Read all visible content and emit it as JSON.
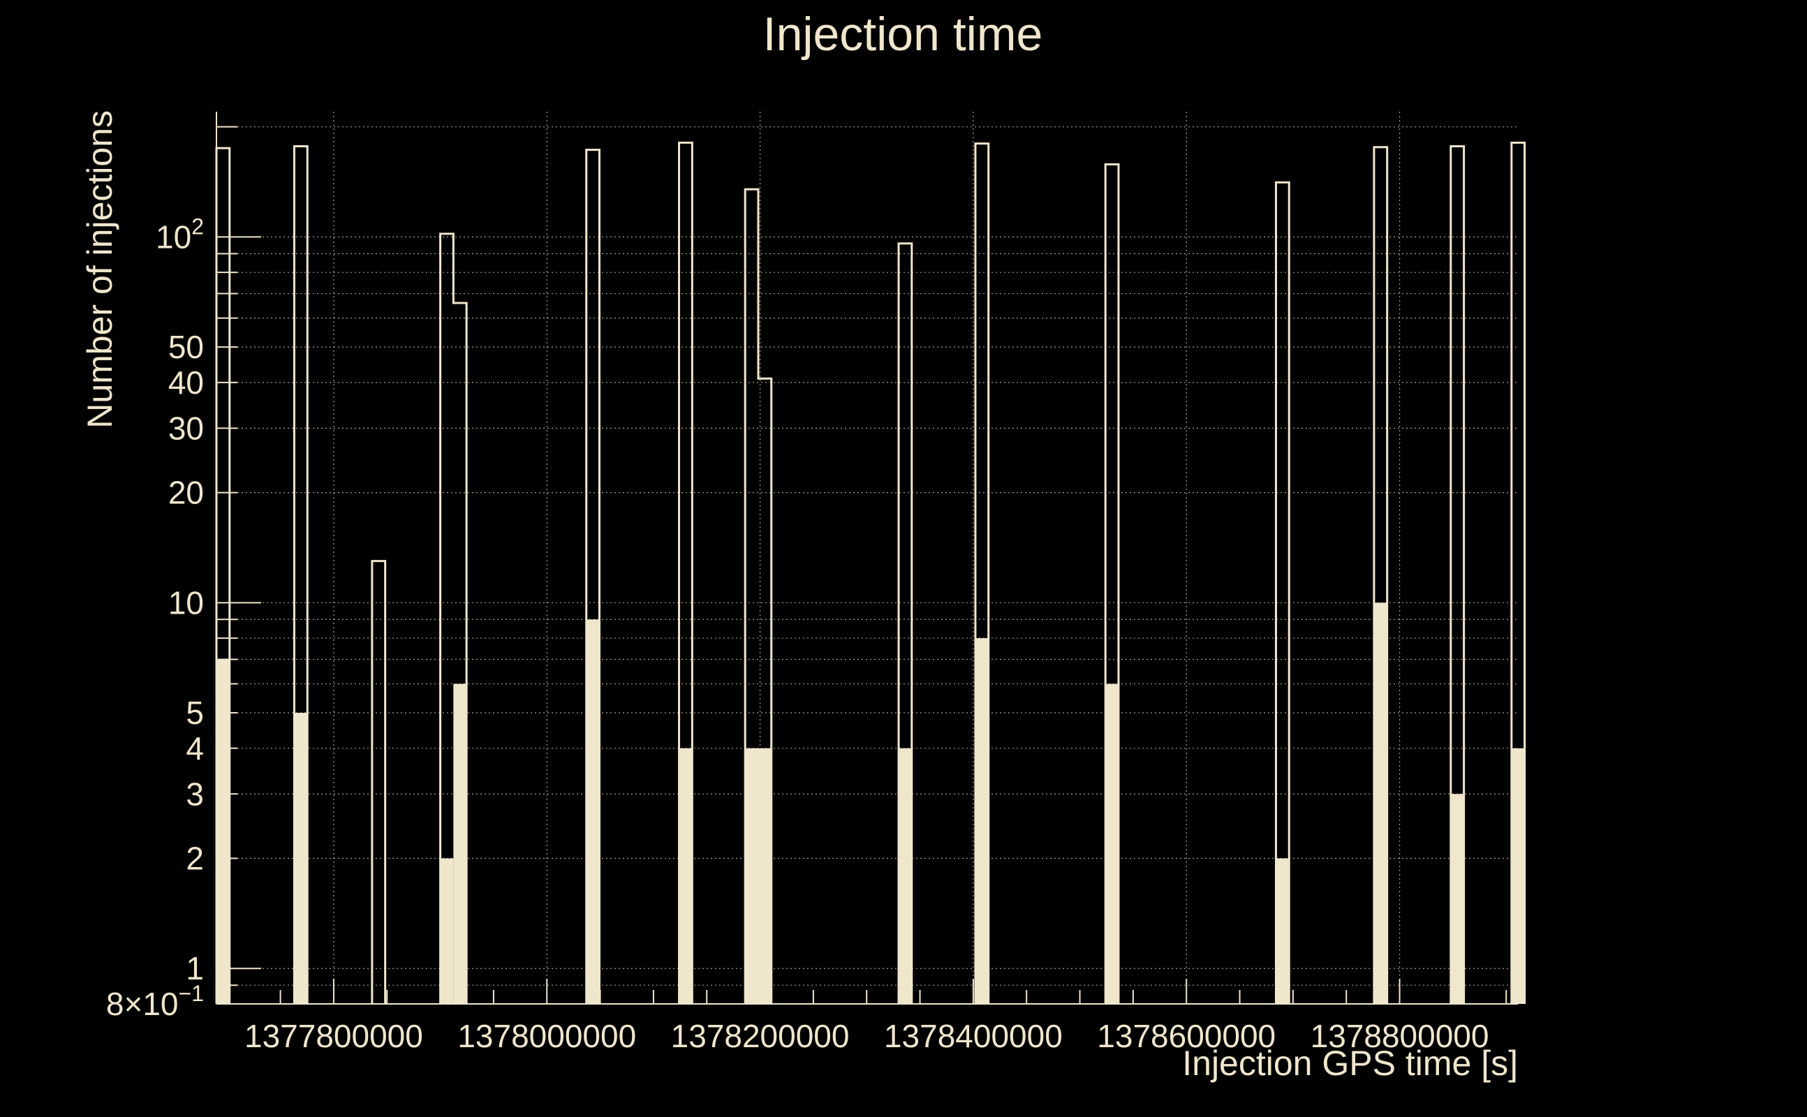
{
  "chart_data": {
    "type": "bar",
    "title": "Injection time",
    "xlabel": "Injection GPS time [s]",
    "ylabel": "Number of injections",
    "y_scale": "log",
    "ylim": [
      0.8,
      220
    ],
    "xlim": [
      1377690000,
      1378911000
    ],
    "x_ticks": [
      1377800000,
      1378000000,
      1378200000,
      1378400000,
      1378600000,
      1378800000
    ],
    "x_tick_labels": [
      "1377800000",
      "1378000000",
      "1378200000",
      "1378400000",
      "1378600000",
      "1378800000"
    ],
    "y_ticks": [
      {
        "value": 0.8,
        "label": "8×10",
        "exp": "−1"
      },
      {
        "value": 1,
        "label": "1",
        "exp": ""
      },
      {
        "value": 2,
        "label": "2",
        "exp": ""
      },
      {
        "value": 3,
        "label": "3",
        "exp": ""
      },
      {
        "value": 4,
        "label": "4",
        "exp": ""
      },
      {
        "value": 5,
        "label": "5",
        "exp": ""
      },
      {
        "value": 10,
        "label": "10",
        "exp": ""
      },
      {
        "value": 20,
        "label": "20",
        "exp": ""
      },
      {
        "value": 30,
        "label": "30",
        "exp": ""
      },
      {
        "value": 40,
        "label": "40",
        "exp": ""
      },
      {
        "value": 50,
        "label": "50",
        "exp": ""
      },
      {
        "value": 100,
        "label": "10",
        "exp": "2"
      }
    ],
    "grid": true,
    "bin_width": 12300,
    "series": [
      {
        "style": "outline",
        "bins": [
          {
            "x": 1377690000,
            "value": 175
          },
          {
            "x": 1377763000,
            "value": 177
          },
          {
            "x": 1377836000,
            "value": 13
          },
          {
            "x": 1377900000,
            "value": 102
          },
          {
            "x": 1377912300,
            "value": 66
          },
          {
            "x": 1378037000,
            "value": 173
          },
          {
            "x": 1378124000,
            "value": 181
          },
          {
            "x": 1378186000,
            "value": 135
          },
          {
            "x": 1378198300,
            "value": 41
          },
          {
            "x": 1378330000,
            "value": 96
          },
          {
            "x": 1378402000,
            "value": 180
          },
          {
            "x": 1378524000,
            "value": 158
          },
          {
            "x": 1378684000,
            "value": 141
          },
          {
            "x": 1378776000,
            "value": 176
          },
          {
            "x": 1378848000,
            "value": 177
          },
          {
            "x": 1378905000,
            "value": 181
          }
        ]
      },
      {
        "style": "filled",
        "bins": [
          {
            "x": 1377690000,
            "value": 7
          },
          {
            "x": 1377763000,
            "value": 5
          },
          {
            "x": 1377900000,
            "value": 2
          },
          {
            "x": 1377912300,
            "value": 6
          },
          {
            "x": 1378037000,
            "value": 9
          },
          {
            "x": 1378124000,
            "value": 4
          },
          {
            "x": 1378186000,
            "value": 4
          },
          {
            "x": 1378198300,
            "value": 4
          },
          {
            "x": 1378330000,
            "value": 4
          },
          {
            "x": 1378402000,
            "value": 8
          },
          {
            "x": 1378524000,
            "value": 6
          },
          {
            "x": 1378684000,
            "value": 2
          },
          {
            "x": 1378776000,
            "value": 10
          },
          {
            "x": 1378848000,
            "value": 3
          },
          {
            "x": 1378905000,
            "value": 4
          }
        ]
      }
    ]
  }
}
